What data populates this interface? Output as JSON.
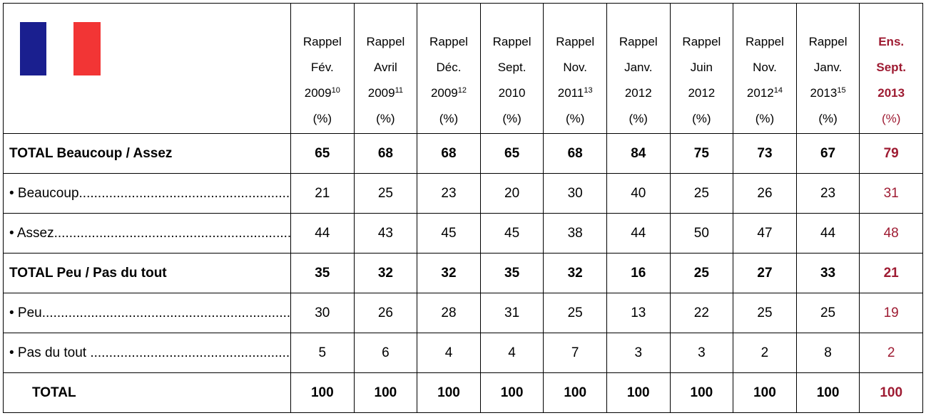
{
  "table": {
    "columns": [
      {
        "lines": [
          "Rappel",
          "Fév."
        ],
        "year": "2009",
        "sup": "10",
        "unit": "(%)"
      },
      {
        "lines": [
          "Rappel",
          "Avril"
        ],
        "year": "2009",
        "sup": "11",
        "unit": "(%)"
      },
      {
        "lines": [
          "Rappel",
          "Déc."
        ],
        "year": "2009",
        "sup": "12",
        "unit": "(%)"
      },
      {
        "lines": [
          "Rappel",
          "Sept."
        ],
        "year": "2010",
        "unit": "(%)"
      },
      {
        "lines": [
          "Rappel",
          "Nov."
        ],
        "year": "2011",
        "sup": "13",
        "unit": "(%)"
      },
      {
        "lines": [
          "Rappel",
          "Janv."
        ],
        "year": "2012",
        "unit": "(%)"
      },
      {
        "lines": [
          "Rappel",
          "Juin"
        ],
        "year": "2012",
        "unit": "(%)"
      },
      {
        "lines": [
          "Rappel",
          "Nov."
        ],
        "year": "2012",
        "sup": "14",
        "unit": "(%)"
      },
      {
        "lines": [
          "Rappel",
          "Janv."
        ],
        "year": "2013",
        "sup": "15",
        "unit": "(%)"
      },
      {
        "lines": [
          "Ens.",
          "Sept."
        ],
        "year": "2013",
        "unit": "(%)",
        "highlight": true
      }
    ],
    "highlight_color": "#9e1b32",
    "rows": [
      {
        "label": "TOTAL Beaucoup / Assez",
        "bold": true,
        "values": [
          65,
          68,
          68,
          65,
          68,
          84,
          75,
          73,
          67,
          79
        ]
      },
      {
        "label": "• Beaucoup",
        "leader": true,
        "values": [
          21,
          25,
          23,
          20,
          30,
          40,
          25,
          26,
          23,
          31
        ]
      },
      {
        "label": "• Assez",
        "leader": true,
        "values": [
          44,
          43,
          45,
          45,
          38,
          44,
          50,
          47,
          44,
          48
        ]
      },
      {
        "label": "TOTAL Peu / Pas du tout",
        "bold": true,
        "values": [
          35,
          32,
          32,
          35,
          32,
          16,
          25,
          27,
          33,
          21
        ]
      },
      {
        "label": "• Peu",
        "leader": true,
        "values": [
          30,
          26,
          28,
          31,
          25,
          13,
          22,
          25,
          25,
          19
        ]
      },
      {
        "label": "• Pas du tout ",
        "leader": true,
        "values": [
          5,
          6,
          4,
          4,
          7,
          3,
          3,
          2,
          8,
          2
        ]
      },
      {
        "label": "TOTAL",
        "bold": true,
        "indent": true,
        "values": [
          100,
          100,
          100,
          100,
          100,
          100,
          100,
          100,
          100,
          100
        ]
      }
    ]
  }
}
